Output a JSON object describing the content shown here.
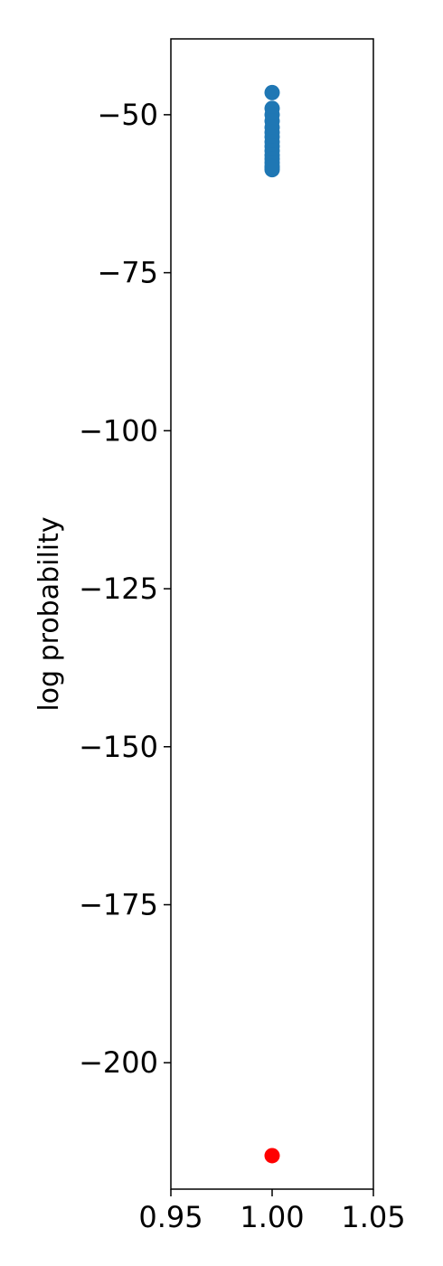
{
  "chart_data": {
    "type": "scatter",
    "title": "",
    "xlabel": "",
    "ylabel": "log probability",
    "xlim": [
      0.95,
      1.05
    ],
    "ylim": [
      -220,
      -38
    ],
    "xticks": [
      0.95,
      1.0,
      1.05
    ],
    "xtick_labels": [
      "0.95",
      "1.00",
      "1.05"
    ],
    "yticks": [
      -50,
      -75,
      -100,
      -125,
      -150,
      -175,
      -200
    ],
    "ytick_labels": [
      "−50",
      "−75",
      "−100",
      "−125",
      "−150",
      "−175",
      "−200"
    ],
    "grid": false,
    "series": [
      {
        "color": "#1f77b4",
        "x": [
          1,
          1,
          1,
          1,
          1,
          1,
          1,
          1,
          1,
          1,
          1,
          1,
          1,
          1,
          1,
          1
        ],
        "y": [
          -46.5,
          -49.0,
          -50.0,
          -51.0,
          -52.0,
          -52.8,
          -53.5,
          -54.3,
          -55.0,
          -55.7,
          -56.4,
          -57.0,
          -57.6,
          -58.2,
          -58.7,
          -58.3
        ]
      },
      {
        "color": "#ff0000",
        "x": [
          1
        ],
        "y": [
          -214.7
        ]
      }
    ]
  }
}
